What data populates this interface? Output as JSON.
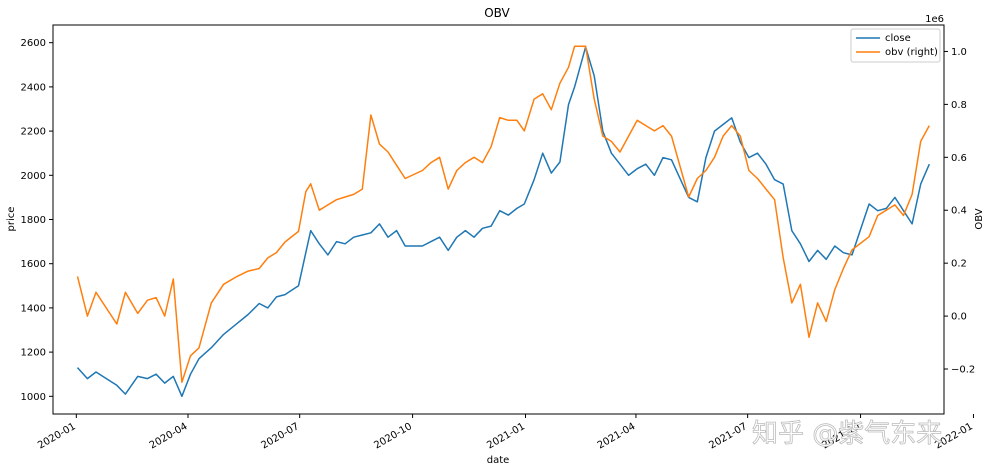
{
  "chart_data": {
    "type": "line",
    "title": "OBV",
    "xlabel": "date",
    "ylabel": "price",
    "ylabel_right": "OBV",
    "right_axis_multiplier": "1e6",
    "xlim": [
      "2019-12-13",
      "2021-12-08"
    ],
    "ylim": [
      920,
      2680
    ],
    "ylim_right": [
      -0.37,
      1.1
    ],
    "x_ticks": [
      "2020-01",
      "2020-04",
      "2020-07",
      "2020-10",
      "2021-01",
      "2021-04",
      "2021-07",
      "2021-10",
      "2022-01"
    ],
    "x_tick_dates": [
      "2020-01-01",
      "2020-04-01",
      "2020-07-01",
      "2020-10-01",
      "2021-01-01",
      "2021-04-01",
      "2021-07-01",
      "2021-10-01",
      "2022-01-01"
    ],
    "y_ticks": [
      1000,
      1200,
      1400,
      1600,
      1800,
      2000,
      2200,
      2400,
      2600
    ],
    "y_ticks_right": [
      "−0.2",
      "0.0",
      "0.2",
      "0.4",
      "0.6",
      "0.8",
      "1.0"
    ],
    "y_tick_right_values": [
      -0.2,
      0.0,
      0.2,
      0.4,
      0.6,
      0.8,
      1.0
    ],
    "grid": false,
    "legend_position": "top-right",
    "series": [
      {
        "name": "close",
        "axis": "left",
        "color": "#1f77b4",
        "x": [
          "2020-01-02",
          "2020-01-10",
          "2020-01-17",
          "2020-02-03",
          "2020-02-10",
          "2020-02-20",
          "2020-02-28",
          "2020-03-06",
          "2020-03-13",
          "2020-03-20",
          "2020-03-27",
          "2020-04-03",
          "2020-04-10",
          "2020-04-20",
          "2020-04-30",
          "2020-05-11",
          "2020-05-20",
          "2020-05-29",
          "2020-06-05",
          "2020-06-12",
          "2020-06-19",
          "2020-06-30",
          "2020-07-06",
          "2020-07-10",
          "2020-07-17",
          "2020-07-24",
          "2020-07-31",
          "2020-08-07",
          "2020-08-14",
          "2020-08-21",
          "2020-08-28",
          "2020-09-04",
          "2020-09-11",
          "2020-09-18",
          "2020-09-25",
          "2020-10-09",
          "2020-10-16",
          "2020-10-23",
          "2020-10-30",
          "2020-11-06",
          "2020-11-13",
          "2020-11-20",
          "2020-11-27",
          "2020-12-04",
          "2020-12-11",
          "2020-12-18",
          "2020-12-25",
          "2020-12-31",
          "2021-01-08",
          "2021-01-15",
          "2021-01-22",
          "2021-01-29",
          "2021-02-05",
          "2021-02-10",
          "2021-02-19",
          "2021-02-26",
          "2021-03-05",
          "2021-03-12",
          "2021-03-19",
          "2021-03-26",
          "2021-04-02",
          "2021-04-09",
          "2021-04-16",
          "2021-04-23",
          "2021-04-30",
          "2021-05-14",
          "2021-05-21",
          "2021-05-28",
          "2021-06-04",
          "2021-06-11",
          "2021-06-18",
          "2021-06-25",
          "2021-07-02",
          "2021-07-09",
          "2021-07-16",
          "2021-07-23",
          "2021-07-30",
          "2021-08-06",
          "2021-08-13",
          "2021-08-20",
          "2021-08-27",
          "2021-09-03",
          "2021-09-10",
          "2021-09-17",
          "2021-09-24",
          "2021-10-08",
          "2021-10-15",
          "2021-10-22",
          "2021-10-29",
          "2021-11-05",
          "2021-11-12",
          "2021-11-19",
          "2021-11-26"
        ],
        "values": [
          1130,
          1080,
          1110,
          1050,
          1010,
          1090,
          1080,
          1100,
          1060,
          1090,
          1000,
          1100,
          1170,
          1220,
          1280,
          1330,
          1370,
          1420,
          1400,
          1450,
          1460,
          1500,
          1650,
          1750,
          1690,
          1640,
          1700,
          1690,
          1720,
          1730,
          1740,
          1780,
          1720,
          1750,
          1680,
          1680,
          1700,
          1720,
          1660,
          1720,
          1750,
          1720,
          1760,
          1770,
          1840,
          1820,
          1850,
          1870,
          1980,
          2100,
          2010,
          2060,
          2320,
          2400,
          2580,
          2450,
          2200,
          2100,
          2050,
          2000,
          2030,
          2050,
          2000,
          2080,
          2070,
          1900,
          1880,
          2080,
          2200,
          2230,
          2260,
          2150,
          2080,
          2100,
          2050,
          1980,
          1960,
          1750,
          1690,
          1610,
          1660,
          1620,
          1680,
          1650,
          1640,
          1870,
          1840,
          1850,
          1900,
          1840,
          1780,
          1960,
          2050
        ]
      },
      {
        "name": "obv (right)",
        "axis": "right",
        "color": "#ff7f0e",
        "x": [
          "2020-01-02",
          "2020-01-10",
          "2020-01-17",
          "2020-02-03",
          "2020-02-10",
          "2020-02-20",
          "2020-02-28",
          "2020-03-06",
          "2020-03-13",
          "2020-03-20",
          "2020-03-27",
          "2020-04-03",
          "2020-04-10",
          "2020-04-20",
          "2020-04-30",
          "2020-05-11",
          "2020-05-20",
          "2020-05-29",
          "2020-06-05",
          "2020-06-12",
          "2020-06-19",
          "2020-06-30",
          "2020-07-06",
          "2020-07-10",
          "2020-07-17",
          "2020-07-24",
          "2020-07-31",
          "2020-08-07",
          "2020-08-14",
          "2020-08-21",
          "2020-08-28",
          "2020-09-04",
          "2020-09-11",
          "2020-09-18",
          "2020-09-25",
          "2020-10-09",
          "2020-10-16",
          "2020-10-23",
          "2020-10-30",
          "2020-11-06",
          "2020-11-13",
          "2020-11-20",
          "2020-11-27",
          "2020-12-04",
          "2020-12-11",
          "2020-12-18",
          "2020-12-25",
          "2020-12-31",
          "2021-01-08",
          "2021-01-15",
          "2021-01-22",
          "2021-01-29",
          "2021-02-05",
          "2021-02-10",
          "2021-02-19",
          "2021-02-26",
          "2021-03-05",
          "2021-03-12",
          "2021-03-19",
          "2021-03-26",
          "2021-04-02",
          "2021-04-09",
          "2021-04-16",
          "2021-04-23",
          "2021-04-30",
          "2021-05-14",
          "2021-05-21",
          "2021-05-28",
          "2021-06-04",
          "2021-06-11",
          "2021-06-18",
          "2021-06-25",
          "2021-07-02",
          "2021-07-09",
          "2021-07-16",
          "2021-07-23",
          "2021-07-30",
          "2021-08-06",
          "2021-08-13",
          "2021-08-20",
          "2021-08-27",
          "2021-09-03",
          "2021-09-10",
          "2021-09-17",
          "2021-09-24",
          "2021-10-08",
          "2021-10-15",
          "2021-10-22",
          "2021-10-29",
          "2021-11-05",
          "2021-11-12",
          "2021-11-19",
          "2021-11-26"
        ],
        "values": [
          0.15,
          0.0,
          0.09,
          -0.03,
          0.09,
          0.01,
          0.06,
          0.07,
          0.0,
          0.14,
          -0.25,
          -0.15,
          -0.12,
          0.05,
          0.12,
          0.15,
          0.17,
          0.18,
          0.22,
          0.24,
          0.28,
          0.32,
          0.47,
          0.5,
          0.4,
          0.42,
          0.44,
          0.45,
          0.46,
          0.48,
          0.76,
          0.65,
          0.62,
          0.57,
          0.52,
          0.55,
          0.58,
          0.6,
          0.48,
          0.55,
          0.58,
          0.6,
          0.58,
          0.64,
          0.75,
          0.74,
          0.74,
          0.7,
          0.82,
          0.84,
          0.78,
          0.88,
          0.94,
          1.02,
          1.02,
          0.82,
          0.68,
          0.66,
          0.62,
          0.68,
          0.74,
          0.72,
          0.7,
          0.72,
          0.68,
          0.45,
          0.52,
          0.55,
          0.6,
          0.68,
          0.72,
          0.68,
          0.55,
          0.52,
          0.48,
          0.44,
          0.22,
          0.05,
          0.12,
          -0.08,
          0.05,
          -0.02,
          0.1,
          0.18,
          0.25,
          0.3,
          0.38,
          0.4,
          0.42,
          0.38,
          0.46,
          0.66,
          0.72
        ]
      }
    ]
  },
  "watermark": {
    "text": "知乎 @紫气东来"
  }
}
